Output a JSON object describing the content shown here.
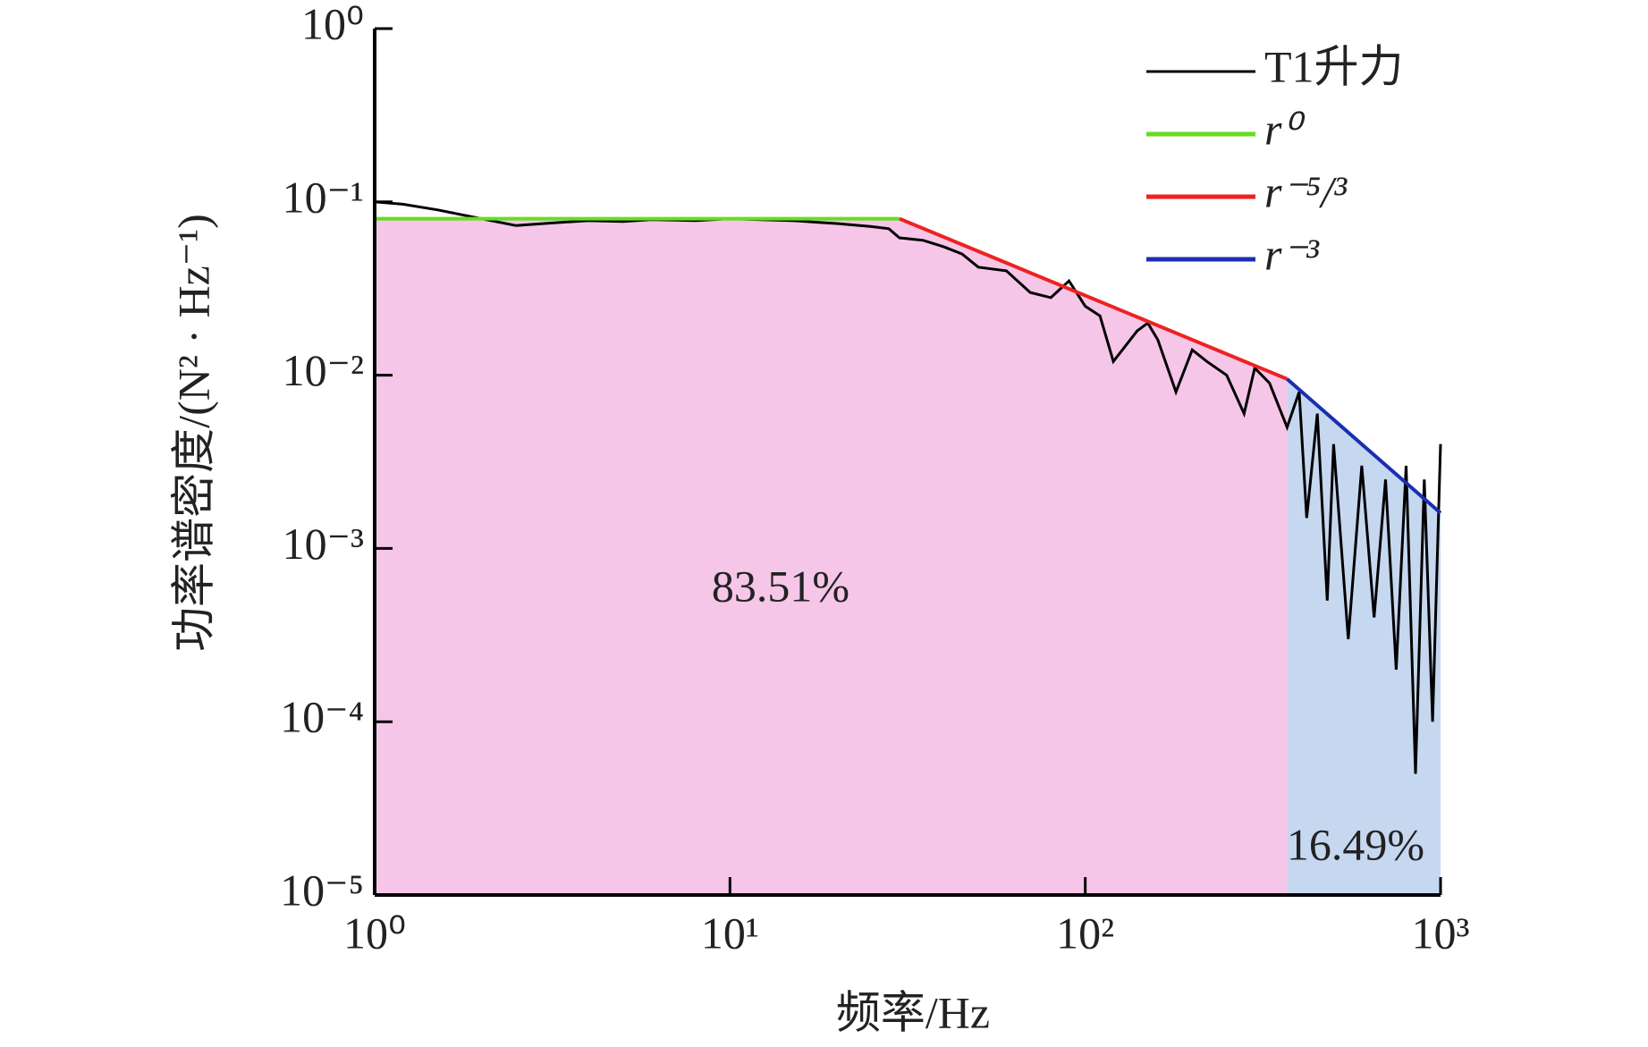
{
  "chart_data": {
    "type": "line",
    "xlabel": "频率/Hz",
    "ylabel": "功率谱密度/(N² · Hz⁻¹)",
    "log_x": true,
    "log_y": true,
    "xlim": [
      1,
      1000
    ],
    "ylim": [
      1e-05,
      1
    ],
    "xticks": [
      {
        "value": 1,
        "label": "10⁰"
      },
      {
        "value": 10,
        "label": "10¹"
      },
      {
        "value": 100,
        "label": "10²"
      },
      {
        "value": 1000,
        "label": "10³"
      }
    ],
    "yticks": [
      {
        "value": 1e-05,
        "label": "10⁻⁵"
      },
      {
        "value": 0.0001,
        "label": "10⁻⁴"
      },
      {
        "value": 0.001,
        "label": "10⁻³"
      },
      {
        "value": 0.01,
        "label": "10⁻²"
      },
      {
        "value": 0.1,
        "label": "10⁻¹"
      },
      {
        "value": 1,
        "label": "10⁰"
      }
    ],
    "series": [
      {
        "name": "T1升力",
        "color": "#000000",
        "x": [
          1,
          1.2,
          1.5,
          2,
          2.5,
          3,
          4,
          5,
          6,
          8,
          10,
          12,
          15,
          18,
          20,
          25,
          28,
          30,
          35,
          40,
          45,
          50,
          60,
          70,
          80,
          90,
          100,
          110,
          120,
          140,
          150,
          160,
          180,
          200,
          220,
          250,
          280,
          300,
          330,
          370,
          400,
          420,
          450,
          480,
          500,
          550,
          600,
          650,
          700,
          750,
          800,
          850,
          900,
          950,
          1000
        ],
        "values": [
          0.1,
          0.097,
          0.09,
          0.08,
          0.073,
          0.075,
          0.078,
          0.077,
          0.079,
          0.078,
          0.08,
          0.079,
          0.078,
          0.076,
          0.075,
          0.072,
          0.07,
          0.062,
          0.06,
          0.055,
          0.05,
          0.042,
          0.04,
          0.03,
          0.028,
          0.035,
          0.025,
          0.022,
          0.012,
          0.018,
          0.02,
          0.016,
          0.008,
          0.014,
          0.012,
          0.01,
          0.006,
          0.011,
          0.009,
          0.005,
          0.008,
          0.0015,
          0.006,
          0.0005,
          0.004,
          0.0003,
          0.003,
          0.0004,
          0.0025,
          0.0002,
          0.003,
          5e-05,
          0.0025,
          0.0001,
          0.004
        ]
      },
      {
        "name": "r⁰",
        "color": "#66dd22",
        "x": [
          1,
          30
        ],
        "values": [
          0.08,
          0.08
        ]
      },
      {
        "name": "r⁻⁵/³",
        "color": "#ee2222",
        "x": [
          30,
          370
        ],
        "values": [
          0.08,
          0.0095
        ]
      },
      {
        "name": "r⁻³",
        "color": "#1a2fb0",
        "x": [
          370,
          1000
        ],
        "values": [
          0.0095,
          0.0016
        ]
      }
    ],
    "regions": [
      {
        "label": "83.51%",
        "color": "#f5c6e8",
        "xlim": [
          1,
          370
        ]
      },
      {
        "label": "16.49%",
        "color": "#c6d8f0",
        "xlim": [
          370,
          1000
        ]
      }
    ]
  }
}
